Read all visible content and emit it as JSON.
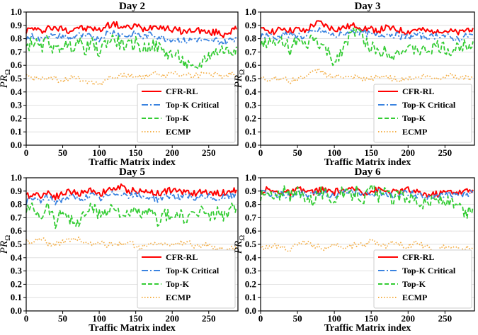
{
  "figure": {
    "description": "Four line charts of PR_Omega vs traffic matrix index"
  },
  "colors": {
    "CFR-RL": "#ff0000",
    "Top-K Critical": "#3a83e0",
    "Top-K": "#33cc33",
    "ECMP": "#f4b04a"
  },
  "chart_data": [
    {
      "type": "line",
      "title": "Day 2",
      "xlabel": "Traffic Matrix index",
      "ylabel": "PR",
      "ylabel_sub": "Ω",
      "xlim": [
        0,
        290
      ],
      "ylim": [
        0.0,
        1.0
      ],
      "xticks": [
        0,
        50,
        100,
        150,
        200,
        250
      ],
      "yticks": [
        0.0,
        0.1,
        0.2,
        0.3,
        0.4,
        0.5,
        0.6,
        0.7,
        0.8,
        0.9,
        1.0
      ],
      "ytick_labels": [
        "0.0",
        "0.1",
        "0.2",
        "0.3",
        "0.4",
        "0.5",
        "0.6",
        "0.7",
        "0.8",
        "0.9",
        "1.0"
      ],
      "xtick_labels": [
        "0",
        "50",
        "100",
        "150",
        "200",
        "250"
      ],
      "grid": "horizontal",
      "legend": "bottom-right",
      "x": [
        0,
        10,
        20,
        30,
        40,
        50,
        60,
        70,
        80,
        90,
        100,
        110,
        120,
        130,
        140,
        150,
        160,
        170,
        180,
        190,
        200,
        210,
        220,
        230,
        240,
        250,
        260,
        270,
        280,
        288
      ],
      "series": [
        {
          "name": "CFR-RL",
          "style": "solid",
          "values": [
            0.86,
            0.88,
            0.85,
            0.89,
            0.87,
            0.88,
            0.86,
            0.89,
            0.87,
            0.88,
            0.86,
            0.9,
            0.91,
            0.89,
            0.88,
            0.9,
            0.87,
            0.89,
            0.9,
            0.88,
            0.87,
            0.86,
            0.85,
            0.87,
            0.86,
            0.84,
            0.85,
            0.83,
            0.86,
            0.87
          ]
        },
        {
          "name": "Top-K Critical",
          "style": "dashdot",
          "values": [
            0.8,
            0.82,
            0.79,
            0.83,
            0.81,
            0.82,
            0.8,
            0.83,
            0.81,
            0.82,
            0.8,
            0.84,
            0.85,
            0.83,
            0.82,
            0.84,
            0.81,
            0.83,
            0.82,
            0.8,
            0.8,
            0.79,
            0.78,
            0.8,
            0.79,
            0.77,
            0.79,
            0.77,
            0.79,
            0.81
          ]
        },
        {
          "name": "Top-K",
          "style": "dashed",
          "values": [
            0.74,
            0.78,
            0.72,
            0.8,
            0.7,
            0.76,
            0.73,
            0.78,
            0.72,
            0.76,
            0.7,
            0.78,
            0.8,
            0.76,
            0.74,
            0.77,
            0.72,
            0.75,
            0.74,
            0.7,
            0.68,
            0.66,
            0.6,
            0.55,
            0.62,
            0.68,
            0.7,
            0.72,
            0.7,
            0.74
          ]
        },
        {
          "name": "ECMP",
          "style": "dotted",
          "values": [
            0.52,
            0.5,
            0.51,
            0.49,
            0.5,
            0.48,
            0.51,
            0.5,
            0.49,
            0.47,
            0.46,
            0.5,
            0.51,
            0.52,
            0.53,
            0.51,
            0.52,
            0.53,
            0.54,
            0.52,
            0.55,
            0.53,
            0.54,
            0.52,
            0.53,
            0.54,
            0.53,
            0.52,
            0.54,
            0.5
          ]
        }
      ]
    },
    {
      "type": "line",
      "title": "Day 3",
      "xlabel": "Traffic Matrix index",
      "ylabel": "PR",
      "ylabel_sub": "Ω",
      "xlim": [
        0,
        290
      ],
      "ylim": [
        0.0,
        1.0
      ],
      "xticks": [
        0,
        50,
        100,
        150,
        200,
        250
      ],
      "yticks": [
        0.0,
        0.1,
        0.2,
        0.3,
        0.4,
        0.5,
        0.6,
        0.7,
        0.8,
        0.9,
        1.0
      ],
      "ytick_labels": [
        "0.0",
        "0.1",
        "0.2",
        "0.3",
        "0.4",
        "0.5",
        "0.6",
        "0.7",
        "0.8",
        "0.9",
        "1.0"
      ],
      "xtick_labels": [
        "0",
        "50",
        "100",
        "150",
        "200",
        "250"
      ],
      "grid": "horizontal",
      "legend": "bottom-right",
      "x": [
        0,
        10,
        20,
        30,
        40,
        50,
        60,
        70,
        80,
        90,
        100,
        110,
        120,
        130,
        140,
        150,
        160,
        170,
        180,
        190,
        200,
        210,
        220,
        230,
        240,
        250,
        260,
        270,
        280,
        288
      ],
      "series": [
        {
          "name": "CFR-RL",
          "style": "solid",
          "values": [
            0.86,
            0.87,
            0.85,
            0.88,
            0.86,
            0.87,
            0.85,
            0.9,
            0.92,
            0.89,
            0.87,
            0.88,
            0.89,
            0.9,
            0.88,
            0.87,
            0.86,
            0.88,
            0.87,
            0.86,
            0.85,
            0.87,
            0.86,
            0.85,
            0.87,
            0.86,
            0.85,
            0.84,
            0.87,
            0.88
          ]
        },
        {
          "name": "Top-K Critical",
          "style": "dashdot",
          "values": [
            0.82,
            0.83,
            0.8,
            0.84,
            0.82,
            0.83,
            0.81,
            0.85,
            0.86,
            0.84,
            0.82,
            0.83,
            0.85,
            0.86,
            0.84,
            0.83,
            0.82,
            0.84,
            0.83,
            0.82,
            0.81,
            0.83,
            0.82,
            0.81,
            0.83,
            0.82,
            0.8,
            0.8,
            0.82,
            0.83
          ]
        },
        {
          "name": "Top-K",
          "style": "dashed",
          "values": [
            0.76,
            0.78,
            0.74,
            0.8,
            0.72,
            0.78,
            0.73,
            0.8,
            0.76,
            0.7,
            0.62,
            0.72,
            0.8,
            0.88,
            0.78,
            0.74,
            0.7,
            0.72,
            0.68,
            0.72,
            0.7,
            0.73,
            0.7,
            0.72,
            0.74,
            0.72,
            0.7,
            0.74,
            0.76,
            0.78
          ]
        },
        {
          "name": "ECMP",
          "style": "dotted",
          "values": [
            0.5,
            0.49,
            0.51,
            0.5,
            0.48,
            0.5,
            0.52,
            0.54,
            0.57,
            0.53,
            0.51,
            0.52,
            0.5,
            0.51,
            0.49,
            0.5,
            0.51,
            0.52,
            0.5,
            0.49,
            0.51,
            0.5,
            0.52,
            0.51,
            0.5,
            0.52,
            0.53,
            0.51,
            0.5,
            0.51
          ]
        }
      ]
    },
    {
      "type": "line",
      "title": "Day 5",
      "xlabel": "Traffic Matrix index",
      "ylabel": "PR",
      "ylabel_sub": "Ω",
      "xlim": [
        0,
        290
      ],
      "ylim": [
        0.0,
        1.0
      ],
      "xticks": [
        0,
        50,
        100,
        150,
        200,
        250
      ],
      "yticks": [
        0.0,
        0.1,
        0.2,
        0.3,
        0.4,
        0.5,
        0.6,
        0.7,
        0.8,
        0.9,
        1.0
      ],
      "ytick_labels": [
        "0.0",
        "0.1",
        "0.2",
        "0.3",
        "0.4",
        "0.5",
        "0.6",
        "0.7",
        "0.8",
        "0.9",
        "1.0"
      ],
      "xtick_labels": [
        "0",
        "50",
        "100",
        "150",
        "200",
        "250"
      ],
      "grid": "horizontal",
      "legend": "bottom-right",
      "x": [
        0,
        10,
        20,
        30,
        40,
        50,
        60,
        70,
        80,
        90,
        100,
        110,
        120,
        130,
        140,
        150,
        160,
        170,
        180,
        190,
        200,
        210,
        220,
        230,
        240,
        250,
        260,
        270,
        280,
        288
      ],
      "series": [
        {
          "name": "CFR-RL",
          "style": "solid",
          "values": [
            0.86,
            0.88,
            0.87,
            0.89,
            0.86,
            0.88,
            0.9,
            0.88,
            0.89,
            0.91,
            0.88,
            0.9,
            0.92,
            0.93,
            0.9,
            0.91,
            0.89,
            0.9,
            0.88,
            0.9,
            0.91,
            0.89,
            0.9,
            0.88,
            0.89,
            0.9,
            0.88,
            0.89,
            0.9,
            0.91
          ]
        },
        {
          "name": "Top-K Critical",
          "style": "dashdot",
          "values": [
            0.82,
            0.84,
            0.83,
            0.85,
            0.82,
            0.84,
            0.86,
            0.84,
            0.85,
            0.87,
            0.84,
            0.86,
            0.88,
            0.89,
            0.86,
            0.87,
            0.85,
            0.86,
            0.84,
            0.86,
            0.87,
            0.85,
            0.86,
            0.84,
            0.85,
            0.86,
            0.84,
            0.85,
            0.86,
            0.87
          ]
        },
        {
          "name": "Top-K",
          "style": "dashed",
          "values": [
            0.76,
            0.78,
            0.72,
            0.8,
            0.66,
            0.76,
            0.7,
            0.64,
            0.74,
            0.78,
            0.72,
            0.76,
            0.78,
            0.74,
            0.7,
            0.76,
            0.72,
            0.74,
            0.68,
            0.72,
            0.7,
            0.74,
            0.66,
            0.72,
            0.76,
            0.7,
            0.74,
            0.72,
            0.76,
            0.78
          ]
        },
        {
          "name": "ECMP",
          "style": "dotted",
          "values": [
            0.53,
            0.52,
            0.54,
            0.51,
            0.5,
            0.52,
            0.53,
            0.55,
            0.51,
            0.5,
            0.52,
            0.49,
            0.51,
            0.5,
            0.52,
            0.49,
            0.48,
            0.5,
            0.51,
            0.49,
            0.5,
            0.51,
            0.52,
            0.49,
            0.48,
            0.5,
            0.47,
            0.46,
            0.48,
            0.47
          ]
        }
      ]
    },
    {
      "type": "line",
      "title": "Day 6",
      "xlabel": "Traffic Matrix index",
      "ylabel": "PR",
      "ylabel_sub": "Ω",
      "xlim": [
        0,
        290
      ],
      "ylim": [
        0.0,
        1.0
      ],
      "xticks": [
        0,
        50,
        100,
        150,
        200,
        250
      ],
      "yticks": [
        0.0,
        0.1,
        0.2,
        0.3,
        0.4,
        0.5,
        0.6,
        0.7,
        0.8,
        0.9,
        1.0
      ],
      "ytick_labels": [
        "0.0",
        "0.1",
        "0.2",
        "0.3",
        "0.4",
        "0.5",
        "0.6",
        "0.7",
        "0.8",
        "0.9",
        "1.0"
      ],
      "xtick_labels": [
        "0",
        "50",
        "100",
        "150",
        "200",
        "250"
      ],
      "grid": "horizontal",
      "legend": "bottom-right",
      "x": [
        0,
        10,
        20,
        30,
        40,
        50,
        60,
        70,
        80,
        90,
        100,
        110,
        120,
        130,
        140,
        150,
        160,
        170,
        180,
        190,
        200,
        210,
        220,
        230,
        240,
        250,
        260,
        270,
        280,
        288
      ],
      "series": [
        {
          "name": "CFR-RL",
          "style": "solid",
          "values": [
            0.9,
            0.91,
            0.89,
            0.9,
            0.88,
            0.91,
            0.9,
            0.89,
            0.91,
            0.9,
            0.89,
            0.91,
            0.9,
            0.92,
            0.89,
            0.9,
            0.91,
            0.9,
            0.89,
            0.9,
            0.91,
            0.89,
            0.88,
            0.87,
            0.88,
            0.89,
            0.9,
            0.89,
            0.9,
            0.91
          ]
        },
        {
          "name": "Top-K Critical",
          "style": "dashdot",
          "values": [
            0.88,
            0.89,
            0.87,
            0.88,
            0.86,
            0.89,
            0.88,
            0.87,
            0.89,
            0.88,
            0.87,
            0.89,
            0.88,
            0.9,
            0.87,
            0.88,
            0.89,
            0.88,
            0.87,
            0.88,
            0.89,
            0.87,
            0.86,
            0.84,
            0.86,
            0.87,
            0.88,
            0.87,
            0.88,
            0.89
          ]
        },
        {
          "name": "Top-K",
          "style": "dashed",
          "values": [
            0.86,
            0.88,
            0.84,
            0.9,
            0.85,
            0.89,
            0.87,
            0.83,
            0.9,
            0.86,
            0.84,
            0.88,
            0.86,
            0.9,
            0.84,
            0.92,
            0.86,
            0.88,
            0.84,
            0.87,
            0.86,
            0.84,
            0.8,
            0.82,
            0.84,
            0.82,
            0.8,
            0.76,
            0.72,
            0.78
          ]
        },
        {
          "name": "ECMP",
          "style": "dotted",
          "values": [
            0.48,
            0.47,
            0.49,
            0.48,
            0.46,
            0.5,
            0.52,
            0.49,
            0.48,
            0.46,
            0.5,
            0.49,
            0.48,
            0.5,
            0.49,
            0.53,
            0.51,
            0.49,
            0.52,
            0.5,
            0.48,
            0.52,
            0.49,
            0.47,
            0.46,
            0.48,
            0.47,
            0.46,
            0.47,
            0.46
          ]
        }
      ]
    }
  ]
}
